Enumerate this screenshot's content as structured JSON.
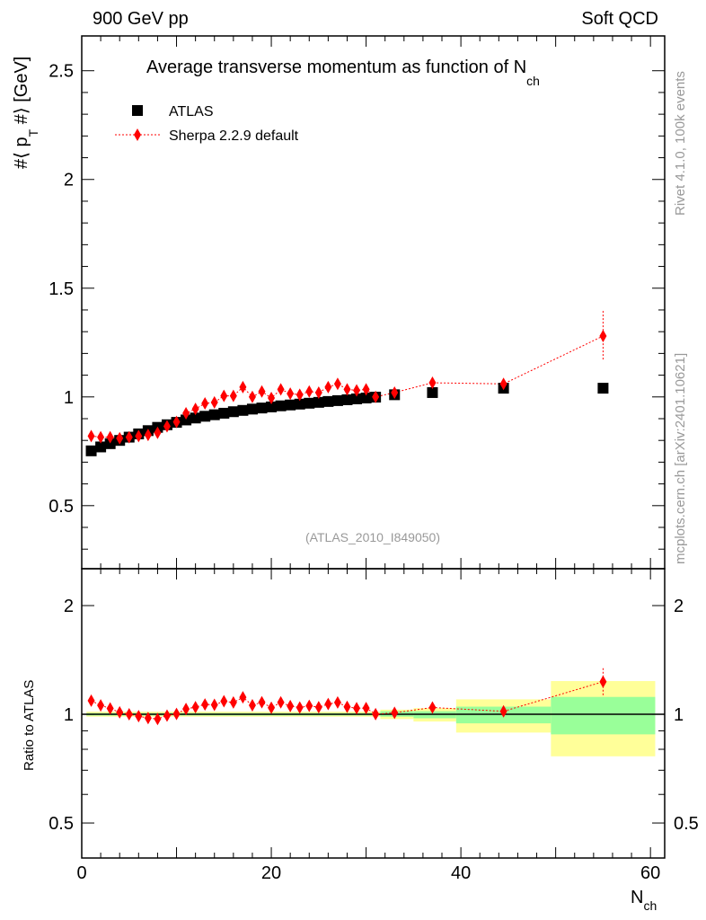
{
  "header": {
    "left": "900 GeV pp",
    "right": "Soft QCD"
  },
  "side": {
    "rivet": "Rivet 4.1.0,  100k events",
    "mcplots": "mcplots.cern.ch [arXiv:2401.10621]"
  },
  "chart_data": [
    {
      "type": "scatter",
      "title": "Average transverse momentum as function of N",
      "title_sub": "ch",
      "ylabel": "#⟨ p",
      "ylabel_sub": "T",
      "ylabel_tail": " #⟩ [GeV]",
      "xlabel": "N",
      "xlabel_sub": "ch",
      "analysis_label": "(ATLAS_2010_I849050)",
      "xlim": [
        0,
        61.5
      ],
      "ylim": [
        0.21,
        2.66
      ],
      "yticks": [
        "0.5",
        "1",
        "1.5",
        "2",
        "2.5"
      ],
      "xticks": [
        "0",
        "20",
        "40",
        "60"
      ],
      "legend": {
        "placement": "top-left",
        "entries": [
          "ATLAS",
          "Sherpa 2.2.9 default"
        ]
      },
      "colors": {
        "data": "#000000",
        "mc": "#ff0000"
      },
      "x": [
        1,
        2,
        3,
        4,
        5,
        6,
        7,
        8,
        9,
        10,
        11,
        12,
        13,
        14,
        15,
        16,
        17,
        18,
        19,
        20,
        21,
        22,
        23,
        24,
        25,
        26,
        27,
        28,
        29,
        30,
        31,
        33,
        37,
        44.5,
        55
      ],
      "series": [
        {
          "name": "ATLAS",
          "values": [
            0.752,
            0.77,
            0.785,
            0.8,
            0.815,
            0.83,
            0.845,
            0.86,
            0.872,
            0.883,
            0.894,
            0.903,
            0.911,
            0.918,
            0.925,
            0.932,
            0.938,
            0.944,
            0.949,
            0.954,
            0.959,
            0.963,
            0.967,
            0.971,
            0.975,
            0.979,
            0.983,
            0.987,
            0.991,
            0.995,
            0.999,
            1.01,
            1.02,
            1.04,
            1.04
          ]
        },
        {
          "name": "Sherpa 2.2.9 default",
          "values": [
            0.82,
            0.815,
            0.815,
            0.81,
            0.815,
            0.82,
            0.825,
            0.835,
            0.865,
            0.885,
            0.925,
            0.945,
            0.97,
            0.975,
            1.005,
            1.005,
            1.045,
            1.0,
            1.025,
            0.995,
            1.035,
            1.015,
            1.01,
            1.025,
            1.02,
            1.045,
            1.06,
            1.035,
            1.03,
            1.035,
            1.0,
            1.02,
            1.065,
            1.06,
            1.28
          ],
          "errors": [
            0.005,
            0.005,
            0.005,
            0.005,
            0.005,
            0.005,
            0.005,
            0.005,
            0.005,
            0.005,
            0.005,
            0.005,
            0.005,
            0.005,
            0.005,
            0.005,
            0.005,
            0.005,
            0.005,
            0.005,
            0.005,
            0.005,
            0.005,
            0.005,
            0.005,
            0.01,
            0.01,
            0.01,
            0.01,
            0.015,
            0.015,
            0.01,
            0.02,
            0.02,
            0.115
          ]
        }
      ]
    },
    {
      "type": "scatter",
      "ylabel": "Ratio to ATLAS",
      "yscale": "log",
      "ylim": [
        0.4,
        2.53
      ],
      "yticks": [
        "0.5",
        "1",
        "2"
      ],
      "bands": [
        {
          "x0": 0.5,
          "x1": 31.5,
          "yellow": [
            0.985,
            1.017
          ],
          "green": [
            0.992,
            1.008
          ]
        },
        {
          "x0": 31.5,
          "x1": 35,
          "yellow": [
            0.97,
            1.03
          ],
          "green": [
            0.985,
            1.02
          ]
        },
        {
          "x0": 35,
          "x1": 39.5,
          "yellow": [
            0.955,
            1.04
          ],
          "green": [
            0.975,
            1.02
          ]
        },
        {
          "x0": 39.5,
          "x1": 49.5,
          "yellow": [
            0.89,
            1.1
          ],
          "green": [
            0.944,
            1.05
          ]
        },
        {
          "x0": 49.5,
          "x1": 60.5,
          "yellow": [
            0.765,
            1.236
          ],
          "green": [
            0.88,
            1.117
          ]
        }
      ],
      "band_colors": {
        "total": "#ffff99",
        "stat": "#99ff99"
      }
    }
  ]
}
